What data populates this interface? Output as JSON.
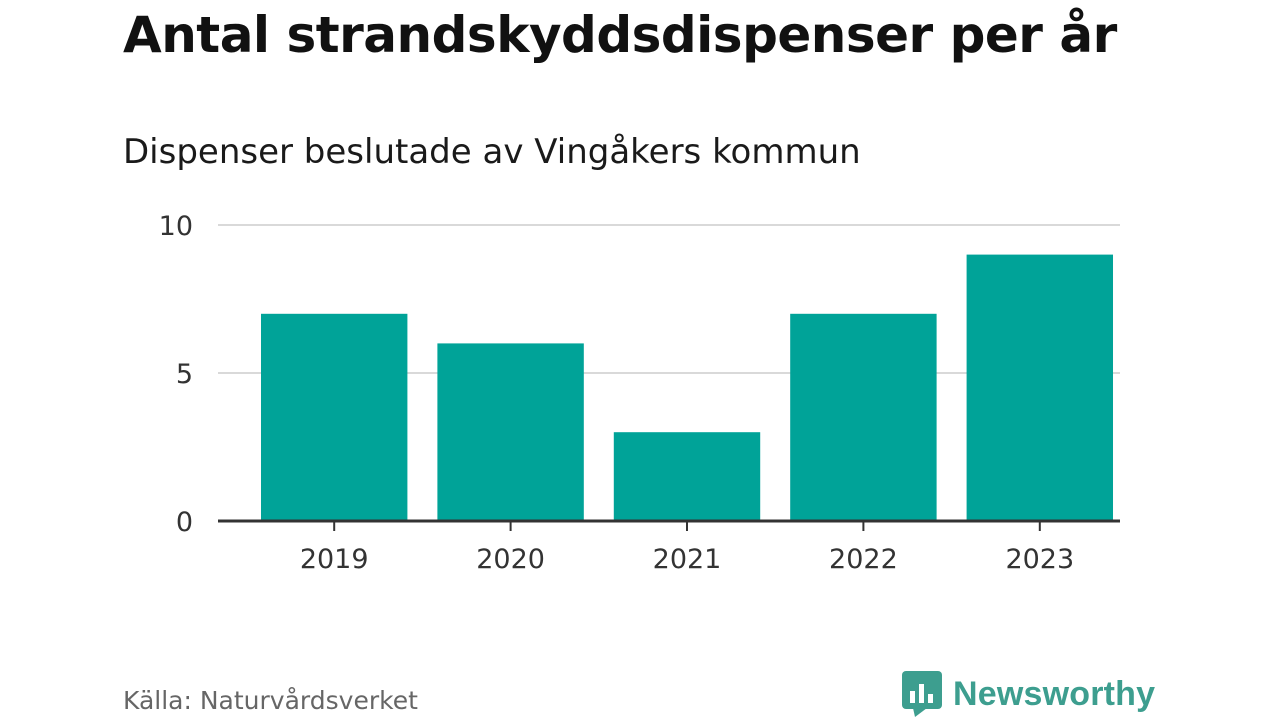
{
  "chart_data": {
    "type": "bar",
    "title": "Antal strandskyddsdispenser per år",
    "subtitle": "Dispenser beslutade av Vingåkers kommun",
    "categories": [
      "2019",
      "2020",
      "2021",
      "2022",
      "2023"
    ],
    "values": [
      7,
      6,
      3,
      7,
      9
    ],
    "ylim": [
      0,
      10
    ],
    "yticks": [
      "0",
      "5",
      "10"
    ],
    "xlabel": "",
    "ylabel": "",
    "grid": true,
    "legend": "none",
    "bar_color": "#00a398"
  },
  "source": "Källa: Naturvårdsverket",
  "brand": {
    "name": "Newsworthy",
    "color": "#3d9e8f",
    "icon": "chart-speech-bubble-icon"
  }
}
